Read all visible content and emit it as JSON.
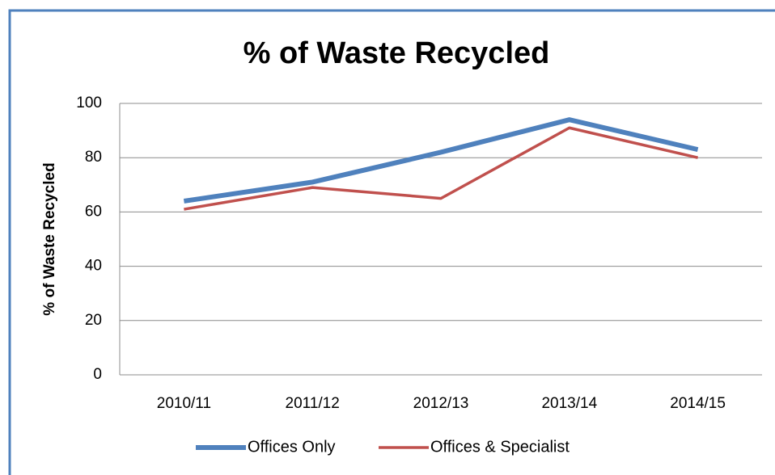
{
  "chart_data": {
    "type": "line",
    "title": "% of Waste Recycled",
    "y_label": "% of Waste Recycled",
    "categories": [
      "2010/11",
      "2011/12",
      "2012/13",
      "2013/14",
      "2014/15"
    ],
    "series": [
      {
        "name": "Offices Only",
        "color": "#4f81bd",
        "width": 6,
        "values": [
          64,
          71,
          82,
          94,
          83
        ]
      },
      {
        "name": "Offices & Specialist",
        "color": "#c0504d",
        "width": 3.5,
        "values": [
          61,
          69,
          65,
          91,
          80
        ]
      }
    ],
    "ylim": [
      0,
      100
    ],
    "yticks": [
      0,
      20,
      40,
      60,
      80,
      100
    ],
    "grid": true,
    "legend": "bottom"
  }
}
